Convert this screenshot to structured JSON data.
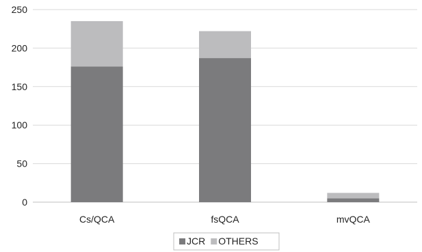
{
  "chart_data": {
    "type": "bar",
    "stacked": true,
    "categories": [
      "Cs/QCA",
      "fsQCA",
      "mvQCA"
    ],
    "series": [
      {
        "name": "JCR",
        "values": [
          176,
          187,
          5
        ],
        "color": "#7b7b7d"
      },
      {
        "name": "OTHERS",
        "values": [
          59,
          35,
          7
        ],
        "color": "#bcbcbe"
      }
    ],
    "yticks": [
      "0",
      "50",
      "100",
      "150",
      "200",
      "250"
    ],
    "ylim": [
      0,
      250
    ],
    "grid": true,
    "legend_position": "bottom"
  }
}
